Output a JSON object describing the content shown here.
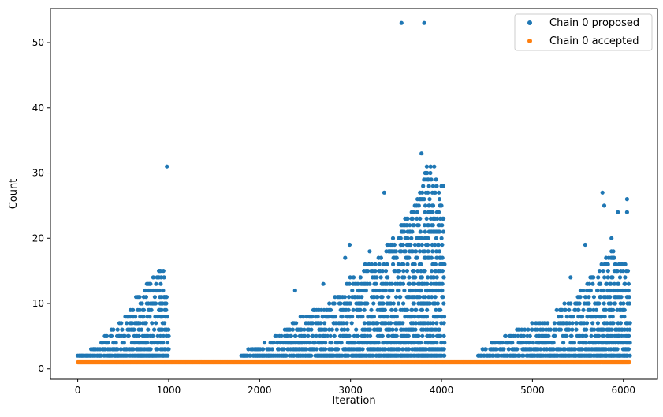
{
  "chart_data": {
    "type": "scatter",
    "title": "",
    "xlabel": "Iteration",
    "ylabel": "Count",
    "xlim": [
      -300,
      6375
    ],
    "ylim": [
      -1.6,
      55.2
    ],
    "xticks": [
      0,
      1000,
      2000,
      3000,
      4000,
      5000,
      6000
    ],
    "yticks": [
      0,
      10,
      20,
      30,
      40,
      50
    ],
    "grid": false,
    "legend_position": "top-right",
    "series": [
      {
        "name": "Chain 0 proposed",
        "color": "#1f77b4",
        "marker": "circle",
        "note_shape": "dense bands of points between 2 and the running maximum in three active regions",
        "bands": [
          {
            "x_start": 0,
            "x_end": 1000,
            "max_envelope": [
              [
                0,
                1
              ],
              [
                100,
                2
              ],
              [
                300,
                5
              ],
              [
                500,
                7
              ],
              [
                700,
                12
              ],
              [
                850,
                14
              ],
              [
                950,
                16
              ],
              [
                1000,
                12
              ]
            ]
          },
          {
            "x_start": 1800,
            "x_end": 4030,
            "max_envelope": [
              [
                1800,
                2
              ],
              [
                2200,
                5
              ],
              [
                2500,
                8
              ],
              [
                2800,
                10
              ],
              [
                3000,
                14
              ],
              [
                3300,
                17
              ],
              [
                3500,
                20
              ],
              [
                3700,
                25
              ],
              [
                3850,
                31
              ],
              [
                4000,
                26
              ],
              [
                4030,
                21
              ]
            ]
          },
          {
            "x_start": 4400,
            "x_end": 6070,
            "max_envelope": [
              [
                4400,
                2
              ],
              [
                4600,
                4
              ],
              [
                4900,
                6
              ],
              [
                5200,
                8
              ],
              [
                5500,
                11
              ],
              [
                5700,
                15
              ],
              [
                5900,
                18
              ],
              [
                6070,
                15
              ]
            ]
          }
        ],
        "outliers": [
          {
            "x": 980,
            "y": 31
          },
          {
            "x": 2390,
            "y": 12
          },
          {
            "x": 2700,
            "y": 13
          },
          {
            "x": 2940,
            "y": 17
          },
          {
            "x": 2990,
            "y": 19
          },
          {
            "x": 3210,
            "y": 18
          },
          {
            "x": 3370,
            "y": 27
          },
          {
            "x": 3560,
            "y": 53
          },
          {
            "x": 3810,
            "y": 53
          },
          {
            "x": 3780,
            "y": 33
          },
          {
            "x": 3880,
            "y": 31
          },
          {
            "x": 3920,
            "y": 31
          },
          {
            "x": 3940,
            "y": 29
          },
          {
            "x": 4000,
            "y": 28
          },
          {
            "x": 4020,
            "y": 28
          },
          {
            "x": 5420,
            "y": 14
          },
          {
            "x": 5580,
            "y": 19
          },
          {
            "x": 5770,
            "y": 27
          },
          {
            "x": 5790,
            "y": 25
          },
          {
            "x": 5870,
            "y": 20
          },
          {
            "x": 5940,
            "y": 24
          },
          {
            "x": 6040,
            "y": 26
          },
          {
            "x": 6040,
            "y": 24
          }
        ]
      },
      {
        "name": "Chain 0 accepted",
        "color": "#ff7f0e",
        "marker": "circle",
        "x_range": [
          0,
          6070
        ],
        "y_constant": 1
      }
    ]
  }
}
